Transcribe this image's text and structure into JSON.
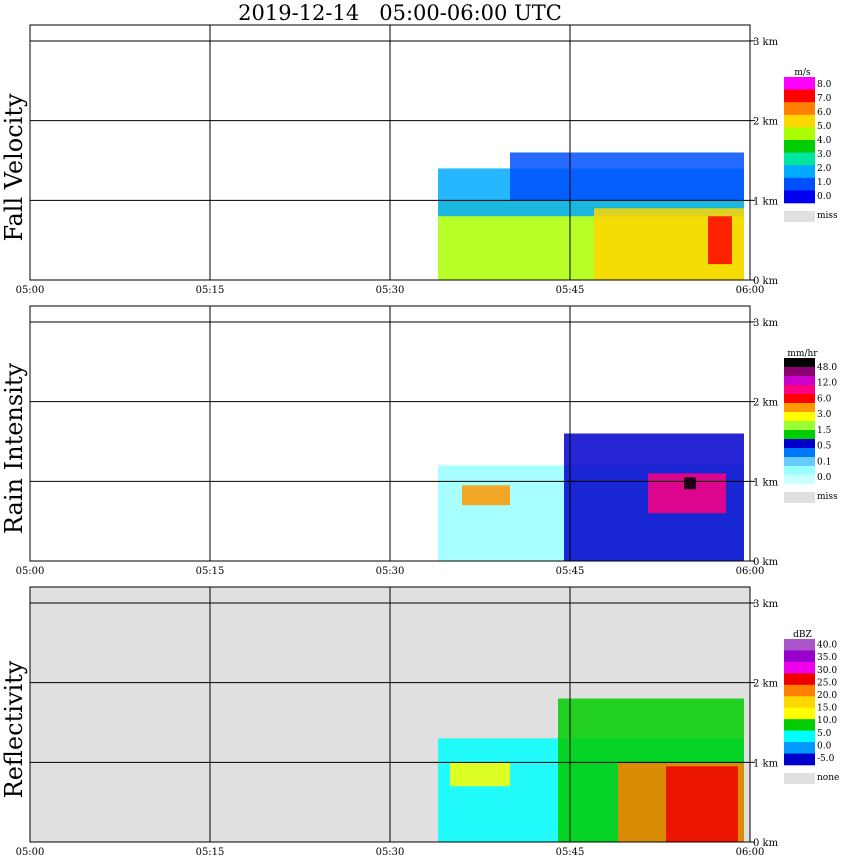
{
  "chart_data": {
    "type": "heatmap",
    "title": "2019-12-14   05:00-06:00 UTC",
    "x_ticks": [
      "05:00",
      "05:15",
      "05:30",
      "05:45",
      "06:00"
    ],
    "y_ticks": [
      "0 km",
      "1 km",
      "2 km",
      "3 km"
    ],
    "panels": [
      {
        "name": "Fall Velocity",
        "unit": "m/s",
        "missing_label": "miss",
        "background": "#ffffff",
        "levels": [
          "8.0",
          "7.0",
          "6.0",
          "5.0",
          "4.0",
          "3.0",
          "2.0",
          "1.0",
          "0.0"
        ],
        "colors": [
          "#ff00ff",
          "#ff0000",
          "#ff7f00",
          "#ffd700",
          "#aaff00",
          "#00cc00",
          "#00e5a0",
          "#00aaff",
          "#0050ff",
          "#0000ee"
        ],
        "regions": [
          {
            "t0": 34.0,
            "t1": 59.5,
            "h0": 0.0,
            "h1": 1.0,
            "ci": 4
          },
          {
            "t0": 34.0,
            "t1": 59.5,
            "h0": 0.8,
            "h1": 1.4,
            "ci": 7
          },
          {
            "t0": 40.0,
            "t1": 59.5,
            "h0": 1.0,
            "h1": 1.6,
            "ci": 8
          },
          {
            "t0": 47.0,
            "t1": 59.5,
            "h0": 0.0,
            "h1": 0.9,
            "ci": 3
          },
          {
            "t0": 56.5,
            "t1": 58.5,
            "h0": 0.2,
            "h1": 0.8,
            "ci": 1
          }
        ]
      },
      {
        "name": "Rain Intensity",
        "unit": "mm/hr",
        "missing_label": "miss",
        "background": "#ffffff",
        "levels": [
          "48.0",
          "12.0",
          "6.0",
          "3.0",
          "1.5",
          "0.5",
          "0.1",
          "0.0"
        ],
        "colors": [
          "#000000",
          "#8b0070",
          "#cc00cc",
          "#ff0080",
          "#ff0000",
          "#ff9900",
          "#ffff00",
          "#99ff33",
          "#00cc00",
          "#0000cc",
          "#0077ff",
          "#66ccff",
          "#99ffff",
          "#ccffff"
        ],
        "regions": [
          {
            "t0": 34.0,
            "t1": 59.5,
            "h0": 0.0,
            "h1": 1.2,
            "ci": 12
          },
          {
            "t0": 44.5,
            "t1": 59.5,
            "h0": 0.0,
            "h1": 1.6,
            "ci": 9
          },
          {
            "t0": 36.0,
            "t1": 40.0,
            "h0": 0.7,
            "h1": 0.95,
            "ci": 5
          },
          {
            "t0": 51.5,
            "t1": 58.0,
            "h0": 0.6,
            "h1": 1.1,
            "ci": 3
          },
          {
            "t0": 54.5,
            "t1": 55.5,
            "h0": 0.9,
            "h1": 1.05,
            "ci": 0
          }
        ]
      },
      {
        "name": "Reflectivity",
        "unit": "dBZ",
        "missing_label": "none",
        "background": "#e0e0e0",
        "levels": [
          "40.0",
          "35.0",
          "30.0",
          "25.0",
          "20.0",
          "15.0",
          "10.0",
          "5.0",
          "0.0",
          "-5.0"
        ],
        "colors": [
          "#aa55cc",
          "#9900cc",
          "#ee00ee",
          "#ee0000",
          "#ff7f00",
          "#ffd700",
          "#ffff00",
          "#00cc00",
          "#00ffff",
          "#0099ff",
          "#0000cc"
        ],
        "regions": [
          {
            "t0": 34.0,
            "t1": 59.5,
            "h0": 0.0,
            "h1": 1.3,
            "ci": 8
          },
          {
            "t0": 44.0,
            "t1": 59.5,
            "h0": 0.0,
            "h1": 1.8,
            "ci": 7
          },
          {
            "t0": 35.0,
            "t1": 40.0,
            "h0": 0.7,
            "h1": 1.0,
            "ci": 6
          },
          {
            "t0": 49.0,
            "t1": 59.5,
            "h0": 0.0,
            "h1": 1.0,
            "ci": 4
          },
          {
            "t0": 53.0,
            "t1": 59.0,
            "h0": 0.0,
            "h1": 0.95,
            "ci": 3
          }
        ]
      }
    ],
    "x_range_minutes": [
      0,
      60
    ],
    "y_range_km": [
      0,
      3.2
    ]
  }
}
